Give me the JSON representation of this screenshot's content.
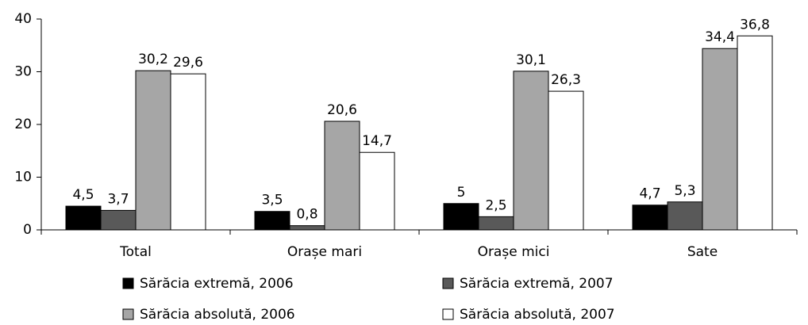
{
  "chart_data": {
    "type": "bar",
    "categories": [
      "Total",
      "Orașe mari",
      "Orașe mici",
      "Sate"
    ],
    "series": [
      {
        "name": "Sărăcia extremă, 2006",
        "color": "#000000",
        "values": [
          4.5,
          3.5,
          5,
          4.7
        ],
        "value_labels": [
          "4,5",
          "3,5",
          "5",
          "4,7"
        ]
      },
      {
        "name": "Sărăcia extremă, 2007",
        "color": "#595959",
        "values": [
          3.7,
          0.8,
          2.5,
          5.3
        ],
        "value_labels": [
          "3,7",
          "0,8",
          "2,5",
          "5,3"
        ]
      },
      {
        "name": "Sărăcia absolută, 2006",
        "color": "#a6a6a6",
        "values": [
          30.2,
          20.6,
          30.1,
          34.4
        ],
        "value_labels": [
          "30,2",
          "20,6",
          "30,1",
          "34,4"
        ]
      },
      {
        "name": "Sărăcia absolută, 2007",
        "color": "#ffffff",
        "values": [
          29.6,
          14.7,
          26.3,
          36.8
        ],
        "value_labels": [
          "29,6",
          "14,7",
          "26,3",
          "36,8"
        ]
      }
    ],
    "ylim": [
      0,
      40
    ],
    "yticks": [
      0,
      10,
      20,
      30,
      40
    ],
    "grid": false
  }
}
